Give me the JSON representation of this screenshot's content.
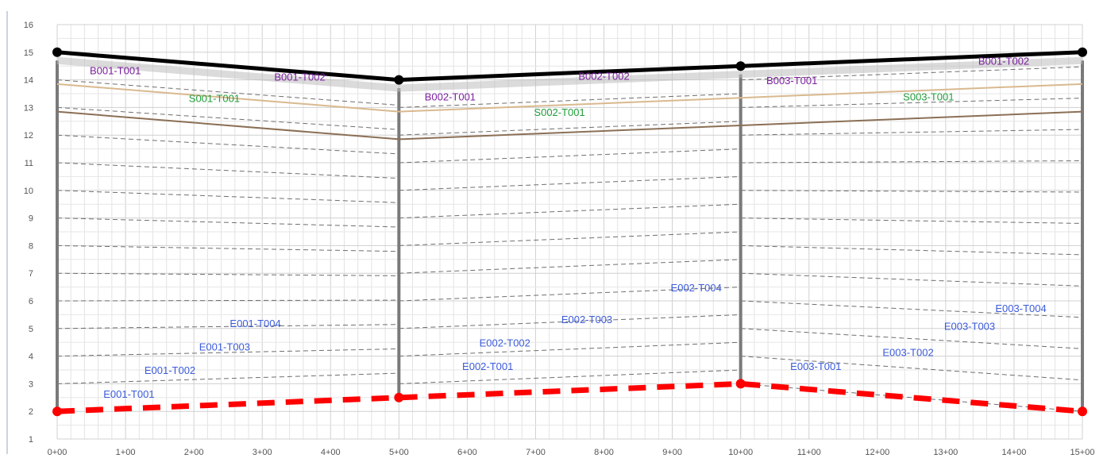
{
  "chart_data": {
    "type": "line",
    "title": "",
    "xlabel": "",
    "ylabel": "",
    "xlim": [
      0,
      15
    ],
    "ylim": [
      1,
      16
    ],
    "grid": true,
    "x_ticks": [
      {
        "value": 0,
        "label": "0+00"
      },
      {
        "value": 1,
        "label": "1+00"
      },
      {
        "value": 2,
        "label": "2+00"
      },
      {
        "value": 3,
        "label": "3+00"
      },
      {
        "value": 4,
        "label": "4+00"
      },
      {
        "value": 5,
        "label": "5+00"
      },
      {
        "value": 6,
        "label": "6+00"
      },
      {
        "value": 7,
        "label": "7+00"
      },
      {
        "value": 8,
        "label": "8+00"
      },
      {
        "value": 9,
        "label": "9+00"
      },
      {
        "value": 10,
        "label": "10+00"
      },
      {
        "value": 11,
        "label": "11+00"
      },
      {
        "value": 12,
        "label": "12+00"
      },
      {
        "value": 13,
        "label": "13+00"
      },
      {
        "value": 14,
        "label": "14+00"
      },
      {
        "value": 15,
        "label": "15+00"
      }
    ],
    "y_ticks": [
      1,
      2,
      3,
      4,
      5,
      6,
      7,
      8,
      9,
      10,
      11,
      12,
      13,
      14,
      15,
      16
    ],
    "columns": [
      {
        "x": 0,
        "top": 14.7,
        "bottom": 2.0
      },
      {
        "x": 5,
        "top": 13.7,
        "bottom": 2.5
      },
      {
        "x": 10,
        "top": 14.2,
        "bottom": 3.0
      },
      {
        "x": 15,
        "top": 14.7,
        "bottom": 2.0
      }
    ],
    "series": [
      {
        "role": "ground-surface",
        "color": "#000000",
        "x": [
          0,
          5,
          10,
          15
        ],
        "y": [
          15.0,
          14.0,
          14.5,
          15.0
        ]
      },
      {
        "role": "shadow",
        "color": "#bdbdbd",
        "x": [
          0,
          5,
          10,
          15
        ],
        "y": [
          14.7,
          13.7,
          14.2,
          14.7
        ]
      },
      {
        "role": "layer-b",
        "color": "#d9b98f",
        "x": [
          0,
          5,
          10,
          15
        ],
        "y": [
          13.85,
          12.85,
          13.35,
          13.85
        ]
      },
      {
        "role": "layer-s",
        "color": "#8b6f55",
        "x": [
          0,
          5,
          10,
          15
        ],
        "y": [
          12.85,
          11.85,
          12.35,
          12.85
        ]
      },
      {
        "role": "water-table",
        "color": "#ff0000",
        "x": [
          0,
          5,
          10,
          15
        ],
        "y": [
          2.0,
          2.5,
          3.0,
          2.0
        ]
      }
    ],
    "hatch": {
      "color": "#6e6e6e",
      "left_levels": [
        3,
        4,
        5,
        6,
        7,
        8,
        9,
        10,
        11,
        12,
        13,
        14
      ]
    },
    "segment_labels": [
      {
        "text": "B001-T001",
        "x": 0.85,
        "y": 14.2,
        "color": "#7b1f9e"
      },
      {
        "text": "B001-T002",
        "x": 3.55,
        "y": 13.97,
        "color": "#7b1f9e"
      },
      {
        "text": "B002-T001",
        "x": 5.75,
        "y": 13.25,
        "color": "#7b1f9e"
      },
      {
        "text": "B002-T002",
        "x": 8.0,
        "y": 14.0,
        "color": "#7b1f9e"
      },
      {
        "text": "B003-T001",
        "x": 10.75,
        "y": 13.85,
        "color": "#7b1f9e"
      },
      {
        "text": "B001-T002",
        "x": 13.85,
        "y": 14.55,
        "color": "#7b1f9e"
      },
      {
        "text": "S001-T001",
        "x": 2.3,
        "y": 13.2,
        "color": "#1f9e3a"
      },
      {
        "text": "S002-T001",
        "x": 7.35,
        "y": 12.7,
        "color": "#1f9e3a"
      },
      {
        "text": "S003-T001",
        "x": 12.75,
        "y": 13.25,
        "color": "#1f9e3a"
      },
      {
        "text": "E001-T001",
        "x": 1.05,
        "y": 2.5,
        "color": "#3b5bdb"
      },
      {
        "text": "E001-T002",
        "x": 1.65,
        "y": 3.35,
        "color": "#3b5bdb"
      },
      {
        "text": "E001-T003",
        "x": 2.45,
        "y": 4.2,
        "color": "#3b5bdb"
      },
      {
        "text": "E001-T004",
        "x": 2.9,
        "y": 5.05,
        "color": "#3b5bdb"
      },
      {
        "text": "E002-T001",
        "x": 6.3,
        "y": 3.5,
        "color": "#3b5bdb"
      },
      {
        "text": "E002-T002",
        "x": 6.55,
        "y": 4.35,
        "color": "#3b5bdb"
      },
      {
        "text": "E002-T003",
        "x": 7.75,
        "y": 5.2,
        "color": "#3b5bdb"
      },
      {
        "text": "E002-T004",
        "x": 9.35,
        "y": 6.35,
        "color": "#3b5bdb"
      },
      {
        "text": "E003-T001",
        "x": 11.1,
        "y": 3.5,
        "color": "#3b5bdb"
      },
      {
        "text": "E003-T002",
        "x": 12.45,
        "y": 4.0,
        "color": "#3b5bdb"
      },
      {
        "text": "E003-T003",
        "x": 13.35,
        "y": 4.95,
        "color": "#3b5bdb"
      },
      {
        "text": "E003-T004",
        "x": 14.1,
        "y": 5.6,
        "color": "#3b5bdb"
      }
    ]
  }
}
